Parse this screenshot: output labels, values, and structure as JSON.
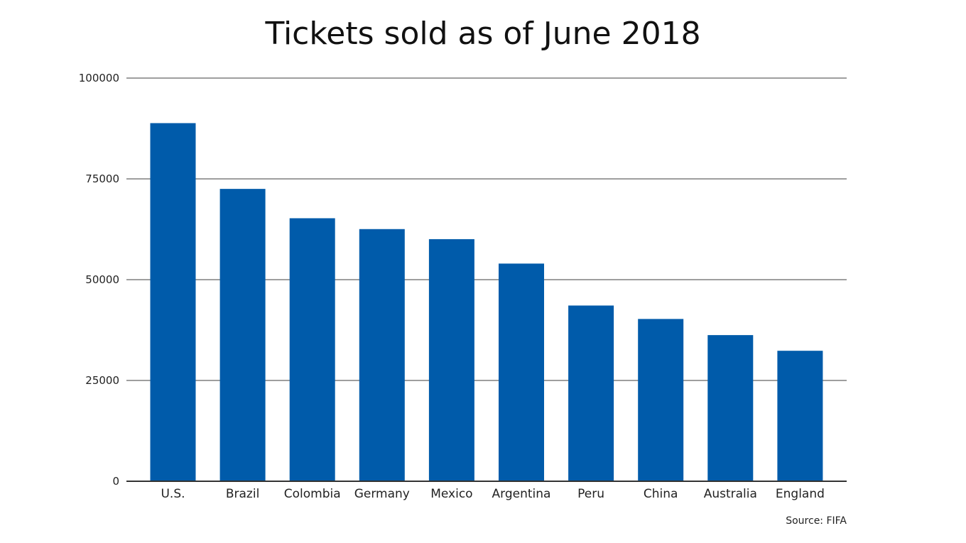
{
  "chart_data": {
    "type": "bar",
    "title": "Tickets sold as of June 2018",
    "xlabel": "",
    "ylabel": "",
    "categories": [
      "U.S.",
      "Brazil",
      "Colombia",
      "Germany",
      "Mexico",
      "Argentina",
      "Peru",
      "China",
      "Australia",
      "England"
    ],
    "values": [
      88825,
      72512,
      65234,
      62541,
      60048,
      53988,
      43583,
      40251,
      36249,
      32362
    ],
    "ylim": [
      0,
      100000
    ],
    "yticks": [
      "0",
      "25000",
      "50000",
      "75000",
      "100000"
    ],
    "ytick_values": [
      0,
      25000,
      50000,
      75000,
      100000
    ],
    "grid": true,
    "legend": "none",
    "bar_color": "#005BAA",
    "source": "Source: FIFA"
  }
}
